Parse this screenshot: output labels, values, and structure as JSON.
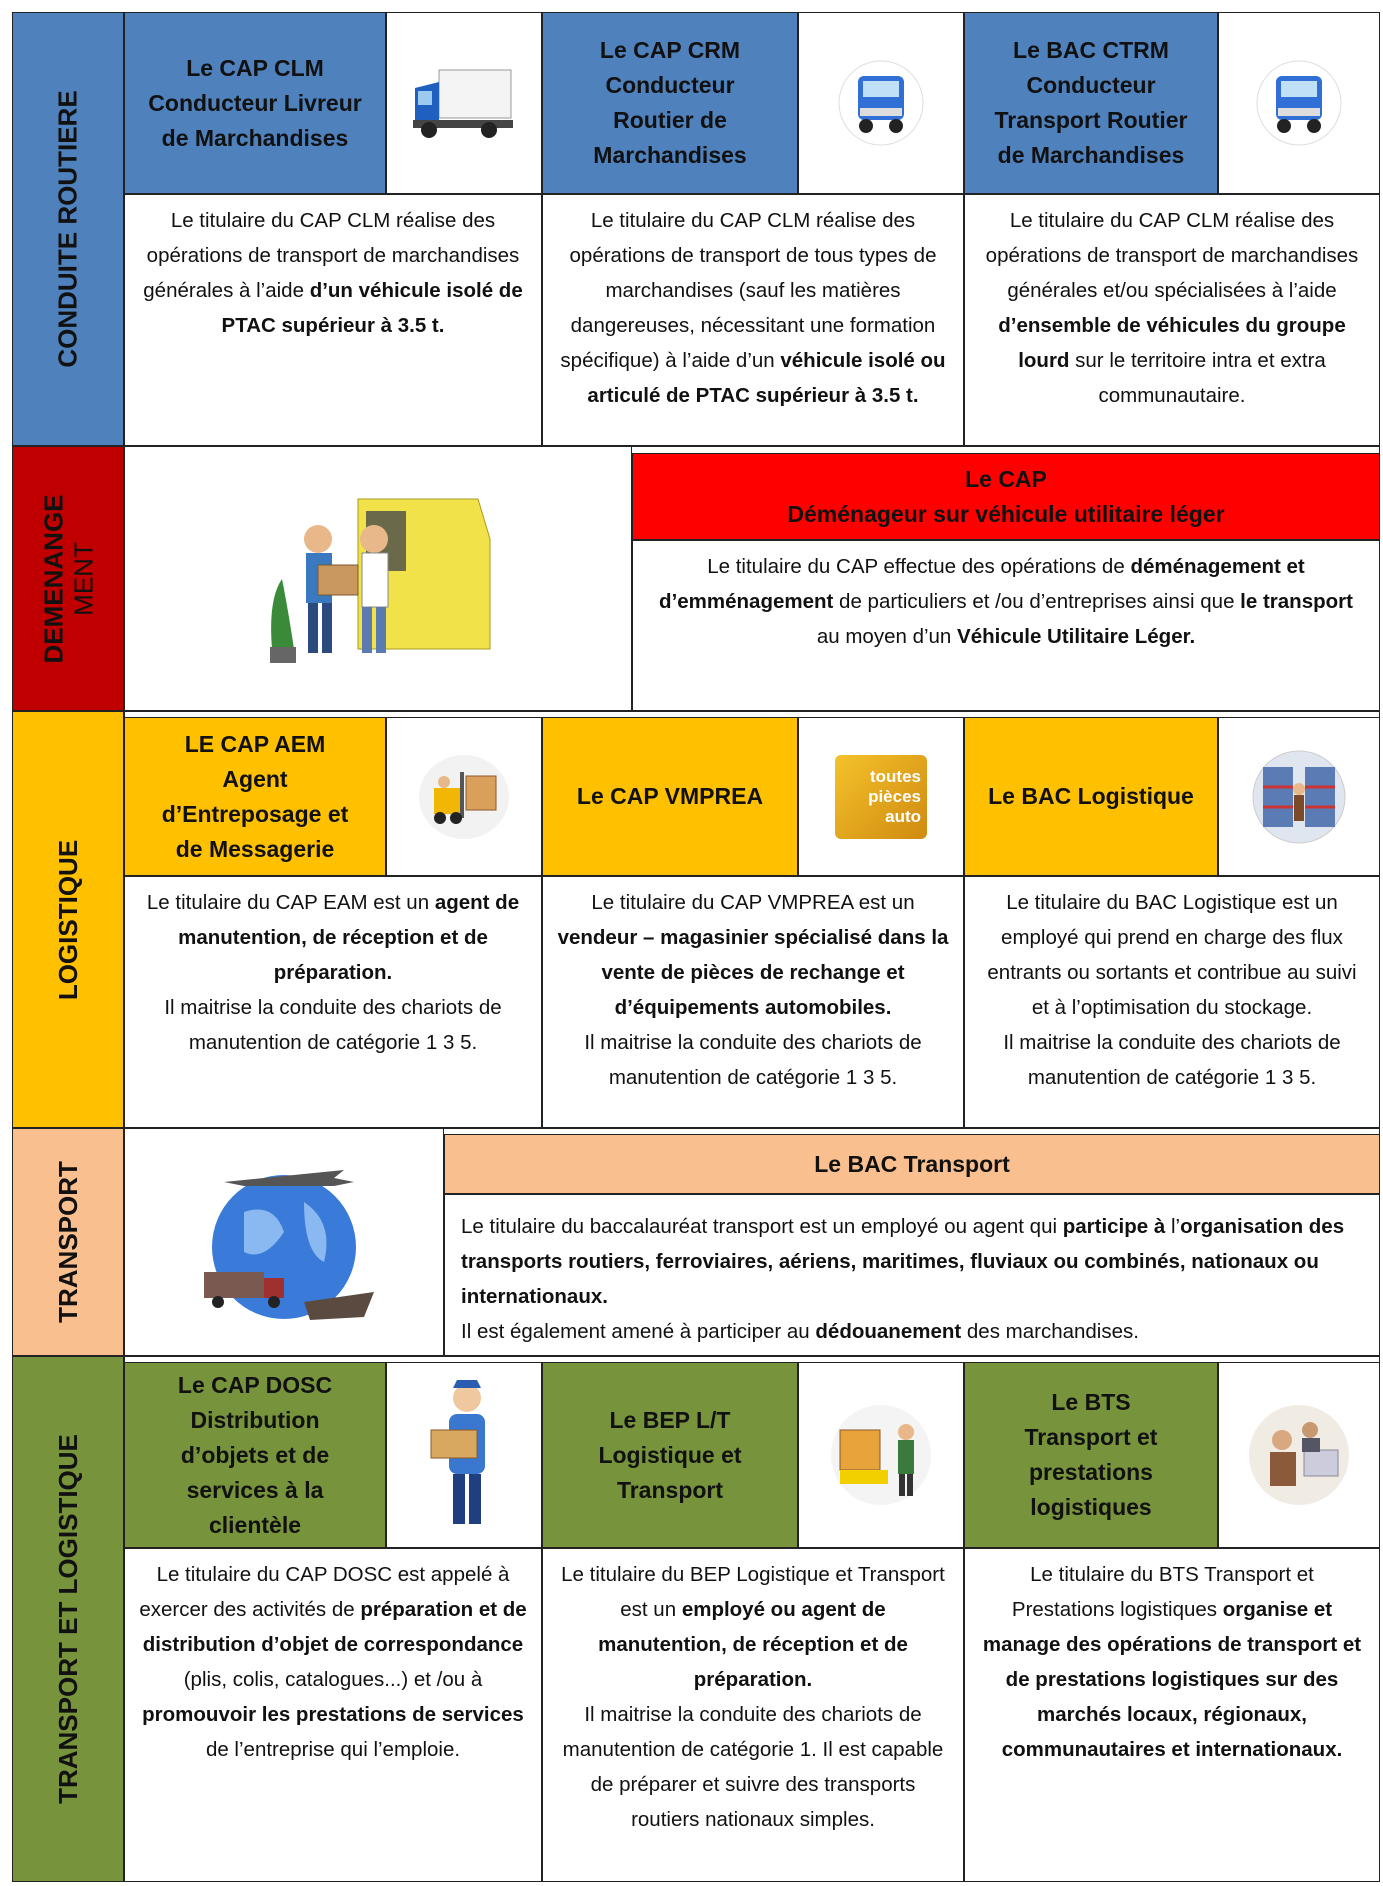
{
  "sections": [
    {
      "label": [
        {
          "text": "CONDUITE ROUTIERE",
          "bold": true
        }
      ],
      "color": "#4f81bd",
      "header_color": "#4f81bd",
      "cards": [
        {
          "title": [
            "Le CAP CLM",
            "Conducteur Livreur",
            "de Marchandises"
          ],
          "description": [
            [
              {
                "text": "Le titulaire du CAP CLM réalise des opérations de transport de marchandises générales à l’aide "
              },
              {
                "text": "d’un véhicule isolé de PTAC supérieur à 3.5 t.",
                "bold": true
              }
            ]
          ]
        },
        {
          "title": [
            "Le CAP CRM",
            "Conducteur",
            "Routier de",
            "Marchandises"
          ],
          "description": [
            [
              {
                "text": "Le titulaire du CAP CLM réalise des opérations de transport de tous types de  marchandises (sauf les matières dangereuses, nécessitant une formation spécifique)  à l’aide d’un "
              },
              {
                "text": "véhicule isolé ou articulé de PTAC supérieur à 3.5 t.",
                "bold": true
              }
            ]
          ]
        },
        {
          "title": [
            "Le  BAC  CTRM",
            "Conducteur",
            "Transport Routier",
            "de Marchandises"
          ],
          "description": [
            [
              {
                "text": "Le titulaire du CAP CLM réalise des opérations de transport de marchandises générales et/ou spécialisées à l’aide "
              },
              {
                "text": "d’ensemble de véhicules du groupe lourd",
                "bold": true
              },
              {
                "text": " sur le territoire intra et extra communautaire."
              }
            ]
          ]
        }
      ]
    },
    {
      "label": [
        {
          "text": "DEMENANGE",
          "bold": true
        },
        {
          "text": "MENT"
        }
      ],
      "color": "#c00000",
      "header_color": "#ff0000",
      "cards": [
        {
          "title": [
            "Le CAP",
            "Déménageur sur véhicule utilitaire léger"
          ],
          "description": [
            [
              {
                "text": "Le titulaire du CAP effectue des opérations de "
              },
              {
                "text": "déménagement et d’emménagement",
                "bold": true
              },
              {
                "text": " de particuliers et /ou d’entreprises ainsi que "
              },
              {
                "text": "le transport",
                "bold": true
              },
              {
                "text": " au moyen d’un "
              },
              {
                "text": "Véhicule Utilitaire Léger.",
                "bold": true
              }
            ]
          ]
        }
      ]
    },
    {
      "label": [
        {
          "text": "LOGISTIQUE",
          "bold": true
        }
      ],
      "color": "#ffc000",
      "header_color": "#ffc000",
      "cards": [
        {
          "title": [
            "LE CAP AEM",
            "Agent",
            "d’Entreposage et",
            "de Messagerie"
          ],
          "description": [
            [
              {
                "text": "Le titulaire du CAP EAM est un "
              },
              {
                "text": "agent de manutention,  de réception et de préparation.",
                "bold": true
              }
            ],
            [
              {
                "text": "Il maitrise la conduite des chariots de manutention de catégorie 1 3 5."
              }
            ]
          ]
        },
        {
          "title": [
            "Le CAP VMPREA"
          ],
          "image_text": [
            "toutes",
            "pièces",
            "auto"
          ],
          "description": [
            [
              {
                "text": "Le titulaire du CAP VMPREA est un "
              },
              {
                "text": "vendeur – magasinier spécialisé dans la vente de pièces de rechange et d’équipements automobiles.",
                "bold": true
              }
            ],
            [
              {
                "text": "Il maitrise la conduite des chariots de manutention de catégorie 1 3 5."
              }
            ]
          ]
        },
        {
          "title": [
            "Le  BAC Logistique"
          ],
          "description": [
            [
              {
                "text": "Le titulaire du BAC Logistique est un employé qui prend en charge des flux entrants ou sortants et contribue au suivi et à l’optimisation du stockage."
              }
            ],
            [
              {
                "text": "Il maitrise la conduite des chariots de manutention de catégorie 1 3 5."
              }
            ]
          ]
        }
      ]
    },
    {
      "label": [
        {
          "text": "TRANSPORT",
          "bold": true
        }
      ],
      "color": "#fabf8f",
      "header_color": "#fabf8f",
      "cards": [
        {
          "title": [
            "Le  BAC Transport"
          ],
          "description": [
            [
              {
                "text": "Le titulaire du baccalauréat transport est un employé ou agent qui "
              },
              {
                "text": "participe  à",
                "bold": true
              },
              {
                "text": " l’"
              },
              {
                "text": "organisation des transports routiers, ferroviaires, aériens, maritimes, fluviaux ou combinés, nationaux ou internationaux.",
                "bold": true
              }
            ],
            [
              {
                "text": "Il est également amené à participer au "
              },
              {
                "text": "dédouanement",
                "bold": true
              },
              {
                "text": " des marchandises."
              }
            ]
          ]
        }
      ]
    },
    {
      "label": [
        {
          "text": "TRANSPORT ET LOGISTIQUE",
          "bold": true
        }
      ],
      "color": "#77933c",
      "header_color": "#77933c",
      "cards": [
        {
          "title": [
            "Le CAP DOSC",
            "Distribution",
            "d’objets et de",
            "services à la",
            "clientèle"
          ],
          "description": [
            [
              {
                "text": "Le titulaire du CAP DOSC est appelé à exercer des activités de "
              },
              {
                "text": "préparation et de distribution d’objet de correspondance",
                "bold": true
              },
              {
                "text": " (plis, colis, catalogues...) et /ou à "
              },
              {
                "text": "promouvoir les prestations de services",
                "bold": true
              },
              {
                "text": " de l’entreprise qui l’emploie."
              }
            ]
          ]
        },
        {
          "title": [
            "Le BEP L/T",
            "Logistique et",
            "Transport"
          ],
          "description": [
            [
              {
                "text": "Le titulaire du BEP Logistique et Transport est un "
              },
              {
                "text": "employé ou agent de manutention, de réception et de préparation.",
                "bold": true
              }
            ],
            [
              {
                "text": "Il maitrise la conduite des chariots de manutention de catégorie 1. Il est capable de préparer et suivre des transports routiers nationaux simples."
              }
            ]
          ]
        },
        {
          "title": [
            "Le BTS",
            "Transport et",
            "prestations",
            "logistiques"
          ],
          "description": [
            [
              {
                "text": "Le titulaire du BTS Transport et Prestations logistiques "
              },
              {
                "text": "organise et manage des opérations de transport et de prestations logistiques sur des marchés locaux, régionaux, communautaires et internationaux.",
                "bold": true
              }
            ]
          ]
        }
      ]
    }
  ]
}
